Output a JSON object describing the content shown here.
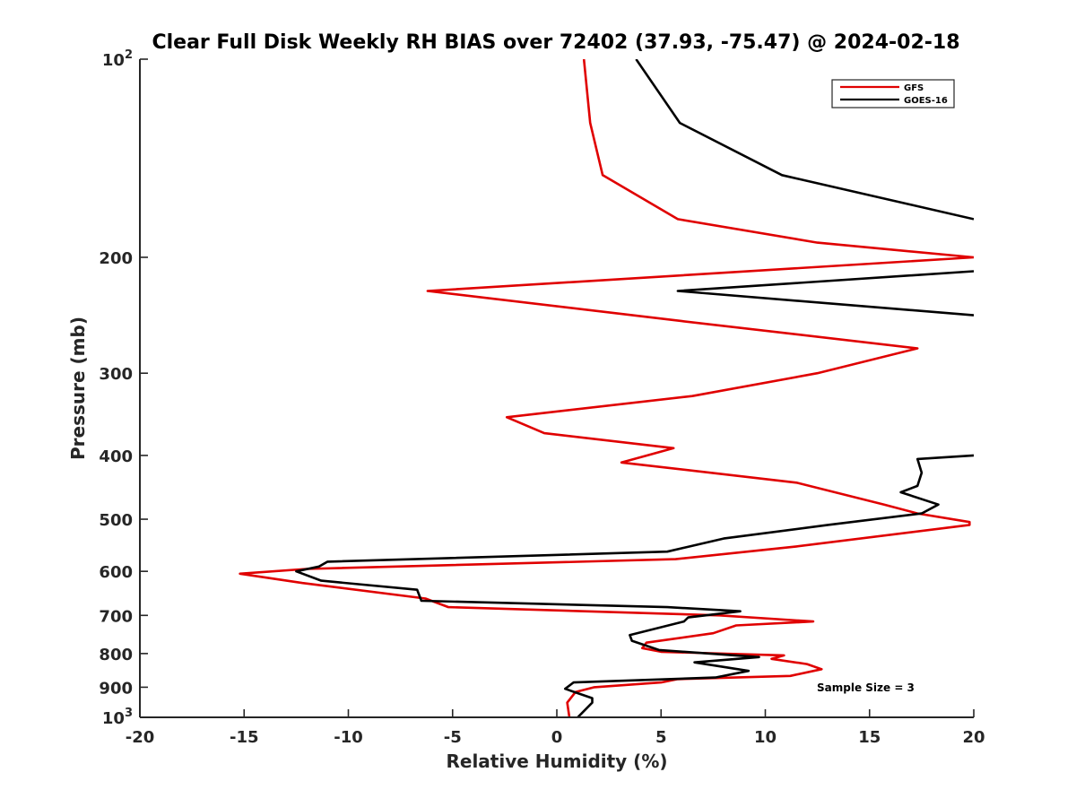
{
  "chart_data": {
    "type": "line",
    "title": "Clear Full Disk Weekly RH BIAS over 72402 (37.93, -75.47) @ 2024-02-18",
    "xlabel": "Relative Humidity (%)",
    "ylabel": "Pressure (mb)",
    "xlim": [
      -20,
      20
    ],
    "ylim": [
      100,
      1000
    ],
    "yscale": "log",
    "y_reversed": true,
    "x_ticks": [
      -20,
      -15,
      -10,
      -5,
      0,
      5,
      10,
      15,
      20
    ],
    "x_tick_labels": [
      "-20",
      "-15",
      "-10",
      "-5",
      "0",
      "5",
      "10",
      "15",
      "20"
    ],
    "y_ticks": [
      100,
      200,
      300,
      400,
      500,
      600,
      700,
      800,
      900,
      1000
    ],
    "y_tick_labels": [
      {
        "base": "10",
        "exp": "2"
      },
      {
        "base": "200",
        "exp": ""
      },
      {
        "base": "300",
        "exp": ""
      },
      {
        "base": "400",
        "exp": ""
      },
      {
        "base": "500",
        "exp": ""
      },
      {
        "base": "600",
        "exp": ""
      },
      {
        "base": "700",
        "exp": ""
      },
      {
        "base": "800",
        "exp": ""
      },
      {
        "base": "900",
        "exp": ""
      },
      {
        "base": "10",
        "exp": "3"
      }
    ],
    "grid": false,
    "legend_position": "top-right",
    "annotation": "Sample Size = 3",
    "series": [
      {
        "name": "GFS",
        "color": "#e00000",
        "points": [
          [
            1.3,
            100
          ],
          [
            1.6,
            125
          ],
          [
            2.2,
            150
          ],
          [
            5.8,
            175
          ],
          [
            12.5,
            190
          ],
          [
            20,
            200
          ],
          [
            -6.2,
            225
          ],
          [
            6,
            250
          ],
          [
            17.3,
            275
          ],
          [
            12.5,
            300
          ],
          [
            6.5,
            325
          ],
          [
            -2.4,
            350
          ],
          [
            -0.6,
            370
          ],
          [
            5.6,
            390
          ],
          [
            3.1,
            410
          ],
          [
            11.5,
            440
          ],
          [
            15.7,
            475
          ],
          [
            17.3,
            490
          ],
          [
            19.8,
            505
          ],
          [
            19.8,
            510
          ],
          [
            11.5,
            550
          ],
          [
            5.7,
            575
          ],
          [
            -12,
            595
          ],
          [
            -15.2,
            605
          ],
          [
            -12.2,
            625
          ],
          [
            -6.3,
            660
          ],
          [
            -5.2,
            680
          ],
          [
            7.8,
            700
          ],
          [
            12.3,
            715
          ],
          [
            8.6,
            725
          ],
          [
            7.5,
            745
          ],
          [
            4.3,
            770
          ],
          [
            4.1,
            785
          ],
          [
            5,
            795
          ],
          [
            10.9,
            805
          ],
          [
            10.3,
            815
          ],
          [
            12,
            830
          ],
          [
            12.7,
            845
          ],
          [
            11.2,
            865
          ],
          [
            5.8,
            875
          ],
          [
            5,
            885
          ],
          [
            1.8,
            900
          ],
          [
            0.9,
            915
          ],
          [
            0.5,
            950
          ],
          [
            0.6,
            1000
          ]
        ]
      },
      {
        "name": "GOES-16",
        "color": "#000000",
        "points": [
          [
            3.8,
            100
          ],
          [
            5.9,
            125
          ],
          [
            10.8,
            150
          ],
          [
            20,
            175
          ],
          null,
          [
            20,
            210
          ],
          [
            5.8,
            225
          ],
          [
            20,
            245
          ],
          null,
          [
            20,
            400
          ],
          [
            17.3,
            405
          ],
          [
            17.5,
            425
          ],
          [
            17.3,
            445
          ],
          [
            16.5,
            455
          ],
          [
            18.3,
            475
          ],
          [
            17.5,
            490
          ],
          [
            13,
            510
          ],
          [
            8,
            535
          ],
          [
            5.3,
            560
          ],
          [
            -11,
            580
          ],
          [
            -11.4,
            590
          ],
          [
            -12.5,
            600
          ],
          [
            -11.3,
            620
          ],
          [
            -6.7,
            640
          ],
          [
            -6.5,
            665
          ],
          [
            5.3,
            680
          ],
          [
            8.8,
            690
          ],
          [
            6.3,
            705
          ],
          [
            6.1,
            715
          ],
          [
            3.5,
            750
          ],
          [
            3.6,
            765
          ],
          [
            4.9,
            790
          ],
          [
            9.7,
            810
          ],
          [
            6.6,
            825
          ],
          [
            9.2,
            850
          ],
          [
            7.6,
            870
          ],
          [
            0.8,
            885
          ],
          [
            0.4,
            905
          ],
          [
            1.7,
            935
          ],
          [
            1.7,
            950
          ],
          [
            1,
            1000
          ]
        ]
      }
    ]
  }
}
